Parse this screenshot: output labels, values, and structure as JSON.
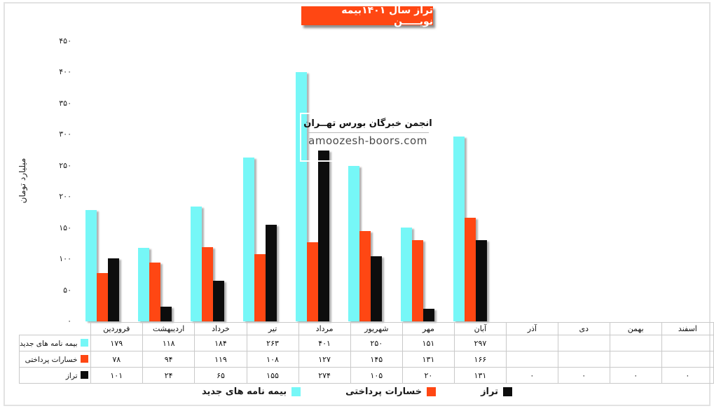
{
  "title_banner": {
    "text": "تراز سال ۱۴۰۱بیمه نویـــــن",
    "bg_color": "#FF4713",
    "text_color": "#FFFFFF"
  },
  "y_axis": {
    "title": "میلیارد تومان",
    "tick_labels": [
      "۴۵۰",
      "۴۰۰",
      "۳۵۰",
      "۳۰۰",
      "۲۵۰",
      "۲۰۰",
      "۱۵۰",
      "۱۰۰",
      "۵۰",
      "۰"
    ],
    "tick_values": [
      450,
      400,
      350,
      300,
      250,
      200,
      150,
      100,
      50,
      0
    ]
  },
  "watermark": {
    "line1": "انجمن خبرگان بورس تهــران",
    "line2": "amoozesh-boors.com"
  },
  "chart_data": {
    "type": "bar",
    "title": "تراز سال ۱۴۰۱بیمه نویـــــن",
    "ylabel": "میلیارد تومان",
    "ylim": [
      0,
      450
    ],
    "grid": false,
    "legend_position": "bottom",
    "categories": [
      "فروردین",
      "اردیبهشت",
      "خرداد",
      "تیر",
      "مرداد",
      "شهریور",
      "مهر",
      "آبان",
      "آذر",
      "دی",
      "بهمن",
      "اسفند"
    ],
    "series": [
      {
        "name": "بیمه نامه های جدید",
        "color": "#76F7F7",
        "values": [
          179,
          118,
          184,
          263,
          401,
          250,
          151,
          297,
          null,
          null,
          null,
          null
        ],
        "display": [
          "۱۷۹",
          "۱۱۸",
          "۱۸۴",
          "۲۶۳",
          "۴۰۱",
          "۲۵۰",
          "۱۵۱",
          "۲۹۷",
          "",
          "",
          "",
          ""
        ]
      },
      {
        "name": "خسارات پرداختی",
        "color": "#FF4713",
        "values": [
          78,
          94,
          119,
          108,
          127,
          145,
          131,
          166,
          null,
          null,
          null,
          null
        ],
        "display": [
          "۷۸",
          "۹۴",
          "۱۱۹",
          "۱۰۸",
          "۱۲۷",
          "۱۴۵",
          "۱۳۱",
          "۱۶۶",
          "",
          "",
          "",
          ""
        ]
      },
      {
        "name": "تراز",
        "color": "#0D0D0D",
        "values": [
          101,
          24,
          65,
          155,
          274,
          105,
          20,
          131,
          0,
          0,
          0,
          0
        ],
        "display": [
          "۱۰۱",
          "۲۴",
          "۶۵",
          "۱۵۵",
          "۲۷۴",
          "۱۰۵",
          "۲۰",
          "۱۳۱",
          "۰",
          "۰",
          "۰",
          "۰"
        ]
      }
    ]
  },
  "legend": {
    "items": [
      {
        "label": "بیمه نامه های جدید",
        "color": "#76F7F7"
      },
      {
        "label": "خسارات پرداختی",
        "color": "#FF4713"
      },
      {
        "label": "تراز",
        "color": "#0D0D0D"
      }
    ]
  }
}
